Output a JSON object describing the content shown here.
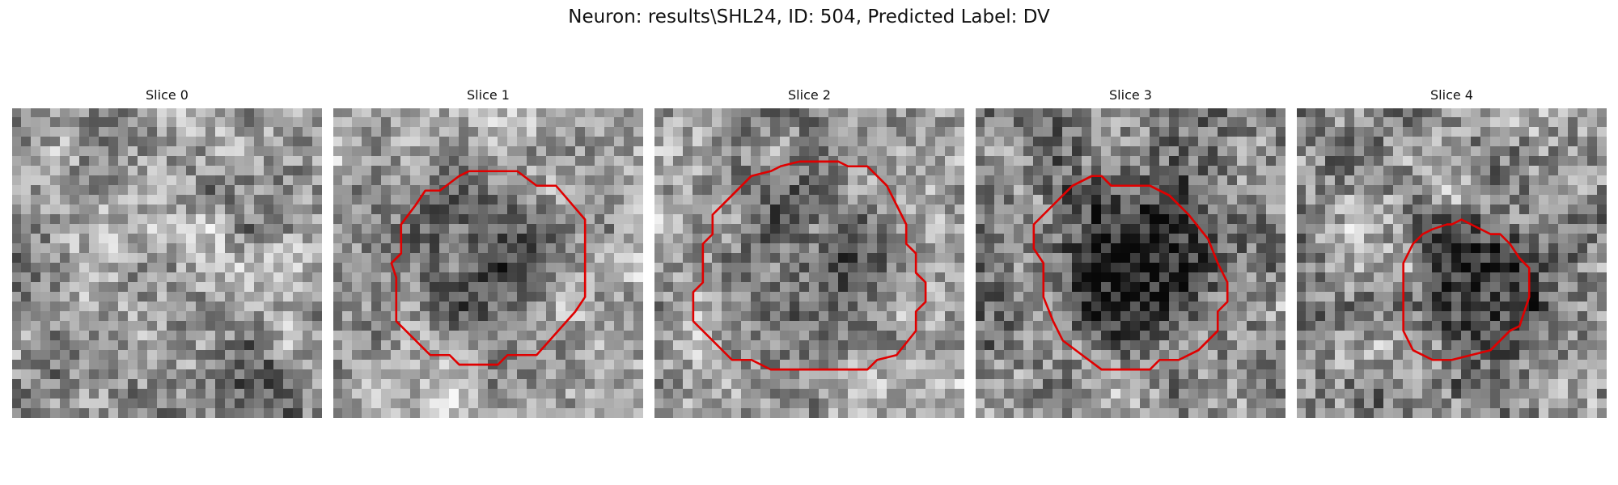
{
  "figure": {
    "title": "Neuron: results\\SHL24, ID: 504, Predicted Label: DV"
  },
  "colors": {
    "contour": "#e00000",
    "background": "#ffffff",
    "text": "#111111"
  },
  "slices": [
    {
      "title": "Slice 0",
      "has_contour": false
    },
    {
      "title": "Slice 1",
      "has_contour": true
    },
    {
      "title": "Slice 2",
      "has_contour": true
    },
    {
      "title": "Slice 3",
      "has_contour": true
    },
    {
      "title": "Slice 4",
      "has_contour": true
    }
  ]
}
